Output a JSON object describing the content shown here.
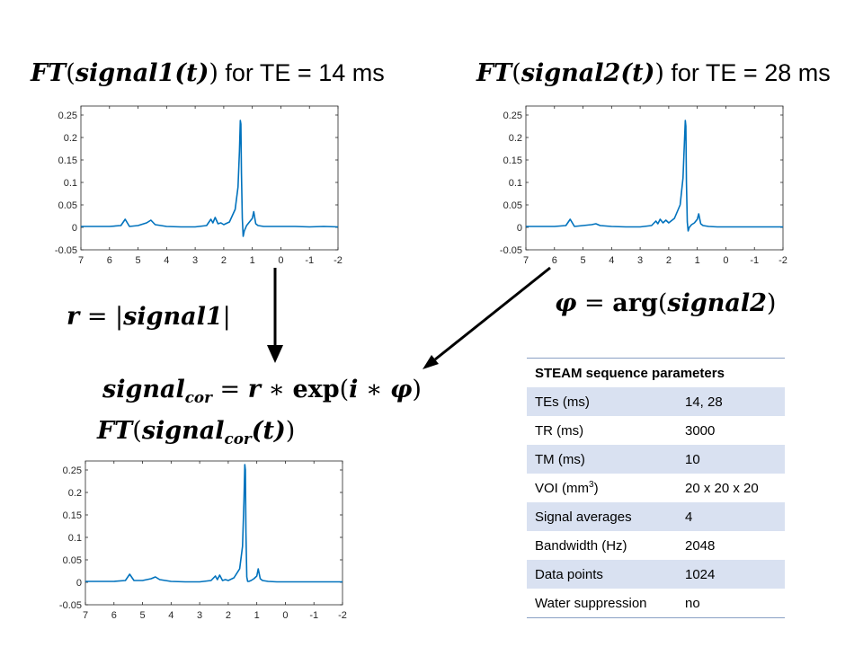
{
  "titles": {
    "plot1_prefix": "FT",
    "plot1_open": "(",
    "plot1_var": "signal1",
    "plot1_arg": "(t)",
    "plot1_close": ")",
    "plot1_suffix": " for TE = 14 ms",
    "plot2_prefix": "FT",
    "plot2_open": "(",
    "plot2_var": "signal2",
    "plot2_arg": "(t)",
    "plot2_close": ")",
    "plot2_suffix": " for TE = 28 ms",
    "plot3_prefix": "FT",
    "plot3_open": "(",
    "plot3_var": "signal",
    "plot3_sub": "cor",
    "plot3_arg": "(t)",
    "plot3_close": ")"
  },
  "equations": {
    "r_lhs": "r",
    "r_eq": " = |",
    "r_var": "signal1",
    "r_close": "|",
    "phi_lhs": "φ",
    "phi_eq": " = ",
    "phi_fn": "arg",
    "phi_open": "(",
    "phi_var": "signal2",
    "phi_close": ")",
    "cor_lhs": "signal",
    "cor_sub": "cor",
    "cor_eq": " = ",
    "cor_r": "r",
    "cor_op": " ∗ ",
    "cor_fn": "exp",
    "cor_open": "(",
    "cor_i": "i",
    "cor_op2": " ∗ ",
    "cor_phi": "φ",
    "cor_close": ")"
  },
  "table": {
    "header": "STEAM sequence parameters",
    "rows": [
      {
        "label": "TEs (ms)",
        "value": "14, 28"
      },
      {
        "label": "TR (ms)",
        "value": "3000"
      },
      {
        "label": "TM (ms)",
        "value": "10"
      },
      {
        "label_pre": "VOI (mm",
        "label_sup": "3",
        "label_post": ")",
        "value": "20 x 20 x 20"
      },
      {
        "label": "Signal averages",
        "value": "4"
      },
      {
        "label": "Bandwidth (Hz)",
        "value": "2048"
      },
      {
        "label": "Data points",
        "value": "1024"
      },
      {
        "label": "Water suppression",
        "value": "no"
      }
    ]
  },
  "chart_data": [
    {
      "type": "line",
      "title": "",
      "xlabel": "",
      "ylabel": "",
      "xlim": [
        7,
        -2
      ],
      "ylim": [
        -0.05,
        0.27
      ],
      "x_reversed": true,
      "xticks": [
        "7",
        "6",
        "5",
        "4",
        "3",
        "2",
        "1",
        "0",
        "-1",
        "-2"
      ],
      "yticks": [
        "-0.05",
        "0",
        "0.05",
        "0.1",
        "0.15",
        "0.2",
        "0.25"
      ],
      "line_color": "#0072bd",
      "series": [
        {
          "x": [
            7,
            6.0,
            5.6,
            5.45,
            5.3,
            5.0,
            4.7,
            4.55,
            4.4,
            4.0,
            3.5,
            3.0,
            2.6,
            2.45,
            2.38,
            2.3,
            2.2,
            2.1,
            2.0,
            1.8,
            1.6,
            1.5,
            1.45,
            1.42,
            1.4,
            1.38,
            1.35,
            1.32,
            1.28,
            1.2,
            1.1,
            1.0,
            0.95,
            0.88,
            0.8,
            0.6,
            0.3,
            0,
            -0.5,
            -1.0,
            -1.5,
            -2
          ],
          "y": [
            0.002,
            0.002,
            0.004,
            0.018,
            0.002,
            0.004,
            0.01,
            0.016,
            0.006,
            0.002,
            0.001,
            0.001,
            0.004,
            0.018,
            0.01,
            0.022,
            0.008,
            0.01,
            0.006,
            0.012,
            0.04,
            0.09,
            0.17,
            0.238,
            0.23,
            0.12,
            0.02,
            -0.02,
            -0.008,
            0.004,
            0.012,
            0.02,
            0.035,
            0.008,
            0.004,
            0.002,
            0.002,
            0.002,
            0.002,
            0.001,
            0.002,
            0.001
          ]
        }
      ]
    },
    {
      "type": "line",
      "title": "",
      "xlabel": "",
      "ylabel": "",
      "xlim": [
        7,
        -2
      ],
      "ylim": [
        -0.05,
        0.27
      ],
      "x_reversed": true,
      "xticks": [
        "7",
        "6",
        "5",
        "4",
        "3",
        "2",
        "1",
        "0",
        "-1",
        "-2"
      ],
      "yticks": [
        "-0.05",
        "0",
        "0.05",
        "0.1",
        "0.15",
        "0.2",
        "0.25"
      ],
      "line_color": "#0072bd",
      "series": [
        {
          "x": [
            7,
            6.0,
            5.6,
            5.45,
            5.3,
            5.0,
            4.7,
            4.55,
            4.4,
            4.0,
            3.5,
            3.0,
            2.6,
            2.45,
            2.38,
            2.3,
            2.2,
            2.1,
            2.0,
            1.8,
            1.6,
            1.5,
            1.45,
            1.42,
            1.4,
            1.38,
            1.35,
            1.32,
            1.28,
            1.2,
            1.1,
            1.0,
            0.95,
            0.88,
            0.8,
            0.6,
            0.3,
            0,
            -0.5,
            -1.0,
            -1.5,
            -2
          ],
          "y": [
            0.002,
            0.002,
            0.004,
            0.018,
            0.002,
            0.004,
            0.006,
            0.008,
            0.004,
            0.002,
            0.001,
            0.001,
            0.004,
            0.014,
            0.008,
            0.018,
            0.01,
            0.016,
            0.01,
            0.02,
            0.05,
            0.11,
            0.19,
            0.238,
            0.225,
            0.1,
            0.012,
            -0.008,
            0.0,
            0.006,
            0.01,
            0.018,
            0.03,
            0.008,
            0.004,
            0.002,
            0.001,
            0.001,
            0.001,
            0.001,
            0.001,
            0.001
          ]
        }
      ]
    },
    {
      "type": "line",
      "title": "",
      "xlabel": "",
      "ylabel": "",
      "xlim": [
        7,
        -2
      ],
      "ylim": [
        -0.05,
        0.27
      ],
      "x_reversed": true,
      "xticks": [
        "7",
        "6",
        "5",
        "4",
        "3",
        "2",
        "1",
        "0",
        "-1",
        "-2"
      ],
      "yticks": [
        "-0.05",
        "0",
        "0.05",
        "0.1",
        "0.15",
        "0.2",
        "0.25"
      ],
      "line_color": "#0072bd",
      "series": [
        {
          "x": [
            7,
            6.0,
            5.6,
            5.45,
            5.3,
            5.0,
            4.7,
            4.55,
            4.4,
            4.0,
            3.5,
            3.0,
            2.6,
            2.45,
            2.38,
            2.3,
            2.2,
            2.1,
            2.0,
            1.8,
            1.6,
            1.5,
            1.45,
            1.42,
            1.4,
            1.38,
            1.35,
            1.32,
            1.28,
            1.2,
            1.1,
            1.0,
            0.95,
            0.88,
            0.8,
            0.6,
            0.3,
            0,
            -0.5,
            -1.0,
            -1.5,
            -2
          ],
          "y": [
            0.002,
            0.002,
            0.004,
            0.018,
            0.004,
            0.004,
            0.008,
            0.012,
            0.006,
            0.002,
            0.001,
            0.001,
            0.004,
            0.014,
            0.006,
            0.016,
            0.004,
            0.006,
            0.004,
            0.01,
            0.03,
            0.08,
            0.18,
            0.262,
            0.25,
            0.11,
            0.012,
            0.002,
            0.002,
            0.004,
            0.008,
            0.014,
            0.03,
            0.008,
            0.004,
            0.002,
            0.001,
            0.001,
            0.001,
            0.001,
            0.001,
            0.001
          ]
        }
      ]
    }
  ]
}
